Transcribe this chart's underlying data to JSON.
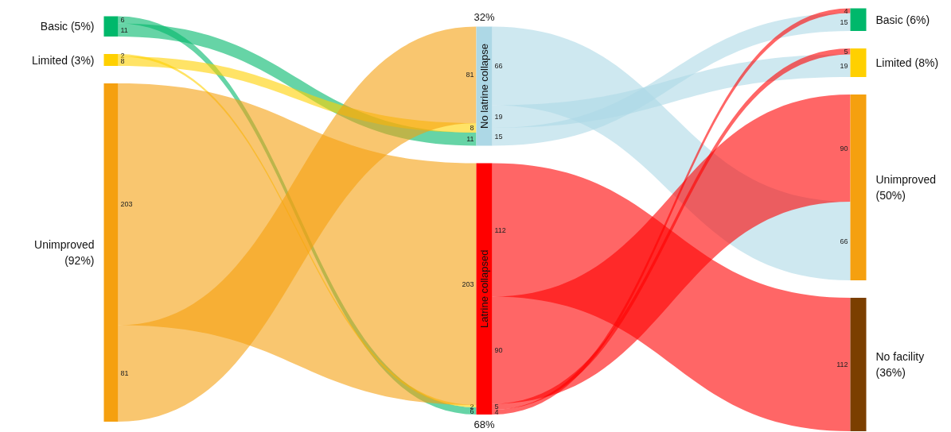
{
  "chart_data": {
    "type": "other",
    "data_labels": true,
    "categories": [
      "Basic (5%)",
      "Limited (3%)",
      "Unimproved\n(92%)",
      "No latrine collapse",
      "Latrine collapsed",
      "Basic (6%)",
      "Limited (8%)",
      "Unimproved\n(50%)",
      "No facility\n(36%)"
    ],
    "colors": [
      "#00b86b",
      "#ffd000",
      "#f5a00f",
      "#add8e6",
      "#ff0000",
      "#00b86b",
      "#ffd000",
      "#f5a00f",
      "#7b3f00"
    ],
    "annotations": [
      "32%",
      "68%"
    ],
    "series": [
      {
        "values": [
          6,
          null,
          null,
          null,
          6,
          null,
          null,
          null,
          null
        ],
        "color": "#00b86b"
      },
      {
        "values": [
          11,
          null,
          null,
          11,
          null,
          null,
          null,
          null,
          null
        ],
        "color": "#00b86b"
      },
      {
        "values": [
          null,
          2,
          null,
          null,
          2,
          null,
          null,
          null,
          null
        ],
        "color": "#ffd000"
      },
      {
        "values": [
          null,
          8,
          null,
          8,
          null,
          null,
          null,
          null,
          null
        ],
        "color": "#ffd000"
      },
      {
        "values": [
          null,
          null,
          203,
          null,
          203,
          null,
          null,
          null,
          null
        ],
        "color": "#f5a00f"
      },
      {
        "values": [
          null,
          null,
          81,
          81,
          null,
          null,
          null,
          null,
          null
        ],
        "color": "#f5a00f"
      },
      {
        "values": [
          null,
          null,
          null,
          66,
          null,
          null,
          null,
          66,
          null
        ],
        "color": "#add8e6"
      },
      {
        "values": [
          null,
          null,
          null,
          19,
          null,
          null,
          19,
          null,
          null
        ],
        "color": "#add8e6"
      },
      {
        "values": [
          null,
          null,
          null,
          15,
          null,
          15,
          null,
          null,
          null
        ],
        "color": "#add8e6"
      },
      {
        "values": [
          null,
          null,
          null,
          null,
          112,
          null,
          null,
          null,
          112
        ],
        "color": "#ff0000"
      },
      {
        "values": [
          null,
          null,
          null,
          null,
          90,
          null,
          null,
          90,
          null
        ],
        "color": "#ff0000"
      },
      {
        "values": [
          null,
          null,
          null,
          null,
          5,
          null,
          5,
          null,
          null
        ],
        "color": "#ff0000"
      },
      {
        "values": [
          null,
          null,
          null,
          null,
          4,
          4,
          null,
          null,
          null
        ],
        "color": "#ff0000"
      }
    ]
  }
}
